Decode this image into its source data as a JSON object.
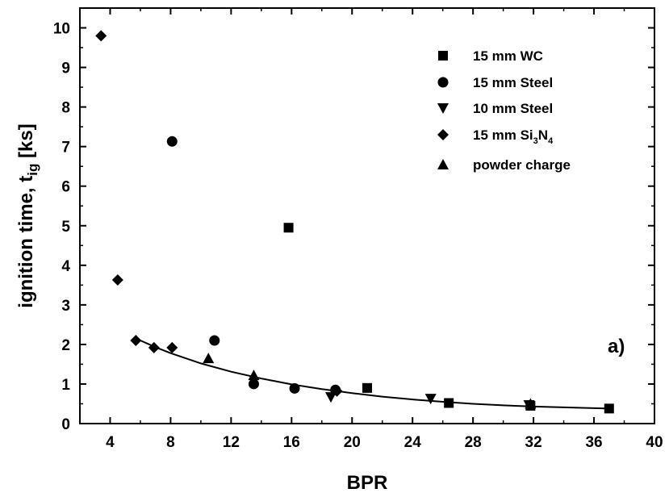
{
  "chart_data": {
    "type": "scatter",
    "xlabel": "BPR",
    "ylabel": "ignition time, t",
    "ylabel_sub": "ig",
    "ylabel_unit": " [ks]",
    "annotation": "a)",
    "xlim": [
      2,
      40
    ],
    "ylim": [
      0,
      10.5
    ],
    "xticks": [
      4,
      8,
      12,
      16,
      20,
      24,
      28,
      32,
      36,
      40
    ],
    "yticks": [
      0,
      1,
      2,
      3,
      4,
      5,
      6,
      7,
      8,
      9,
      10
    ],
    "grid": false,
    "legend_position": "top-right",
    "series": [
      {
        "name": "15 mm WC",
        "marker": "square",
        "points": [
          [
            15.8,
            4.95
          ],
          [
            21.0,
            0.9
          ],
          [
            26.4,
            0.52
          ],
          [
            31.8,
            0.45
          ],
          [
            37.0,
            0.38
          ]
        ]
      },
      {
        "name": "15 mm Steel",
        "marker": "circle",
        "points": [
          [
            8.1,
            7.13
          ],
          [
            10.9,
            2.1
          ],
          [
            13.5,
            1.0
          ],
          [
            16.2,
            0.89
          ],
          [
            18.9,
            0.85
          ]
        ]
      },
      {
        "name": "10 mm Steel",
        "marker": "triangle-down",
        "points": [
          [
            18.6,
            0.67
          ],
          [
            25.2,
            0.63
          ],
          [
            31.7,
            0.47
          ]
        ]
      },
      {
        "name": "15 mm Si3N4",
        "name_parts": [
          "15 mm Si",
          "3",
          "N",
          "4"
        ],
        "marker": "diamond",
        "points": [
          [
            3.4,
            9.8
          ],
          [
            4.5,
            3.63
          ],
          [
            5.7,
            2.1
          ],
          [
            6.9,
            1.92
          ],
          [
            8.1,
            1.92
          ],
          [
            19.0,
            0.82
          ]
        ]
      },
      {
        "name": "powder charge",
        "marker": "triangle-up",
        "points": [
          [
            10.5,
            1.65
          ],
          [
            13.5,
            1.22
          ],
          [
            31.8,
            0.5
          ]
        ]
      }
    ],
    "fit_curve": {
      "x": [
        5.7,
        7,
        8,
        10,
        12,
        14,
        16,
        18,
        20,
        22,
        24,
        26,
        28,
        30,
        32,
        34,
        36,
        37
      ],
      "y": [
        2.15,
        1.93,
        1.78,
        1.52,
        1.31,
        1.14,
        0.99,
        0.87,
        0.77,
        0.68,
        0.61,
        0.55,
        0.5,
        0.46,
        0.43,
        0.41,
        0.39,
        0.38
      ]
    }
  }
}
